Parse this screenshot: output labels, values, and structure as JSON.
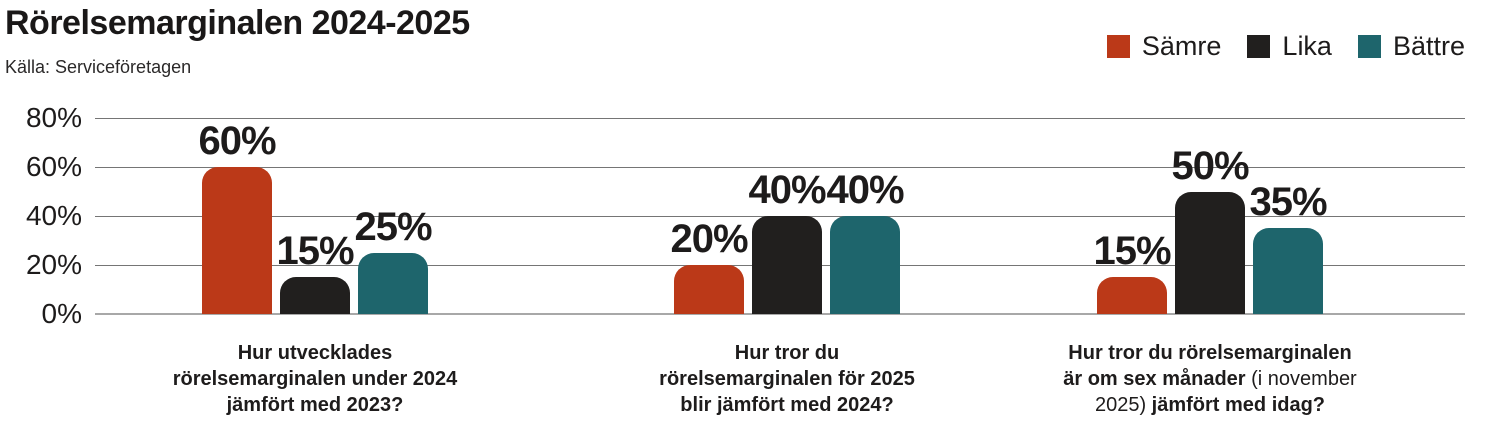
{
  "header": {
    "title": "Rörelsemarginalen 2024-2025",
    "source": "Källa: Serviceföretagen"
  },
  "chart_data": {
    "type": "bar",
    "title": "Rörelsemarginalen 2024-2025",
    "source": "Källa: Serviceföretagen",
    "categories": [
      "Hur utvecklades rörelsemarginalen under 2024 jämfört med 2023?",
      "Hur tror du rörelsemarginalen för 2025 blir jämfört med 2024?",
      "Hur tror du rörelsemarginalen är om sex månader (i november 2025) jämfört med idag?"
    ],
    "series": [
      {
        "name": "Sämre",
        "color": "#bb3918",
        "values": [
          60,
          20,
          15
        ],
        "display_values": [
          "60%",
          "20%",
          "15%"
        ]
      },
      {
        "name": "Lika",
        "color": "#211f1e",
        "values": [
          15,
          40,
          50
        ],
        "display_values": [
          "15%",
          "40%",
          "50%"
        ]
      },
      {
        "name": "Bättre",
        "color": "#1e656c",
        "values": [
          25,
          40,
          35
        ],
        "display_values": [
          "25%",
          "40%",
          "35%"
        ]
      }
    ],
    "ylim": [
      0,
      80
    ],
    "ytick_labels": [
      "80%",
      "60%",
      "40%",
      "20%",
      "0%"
    ],
    "grid": true,
    "legend_position": "top-right",
    "value_labels": true
  },
  "questions": [
    {
      "line1": "Hur utvecklades",
      "line2": "rörelsemarginalen under 2024",
      "line3": "jämfört med 2023?"
    },
    {
      "line1": "Hur tror du",
      "line2": "rörelsemarginalen för 2025",
      "line3": "blir jämfört med 2024?"
    },
    {
      "line1": "Hur tror du rörelsemarginalen",
      "line2_bold": "är om sex månader ",
      "line2_regular": "(i november",
      "line3_regular": "2025) ",
      "line3_bold": "jämfört med idag?"
    }
  ]
}
